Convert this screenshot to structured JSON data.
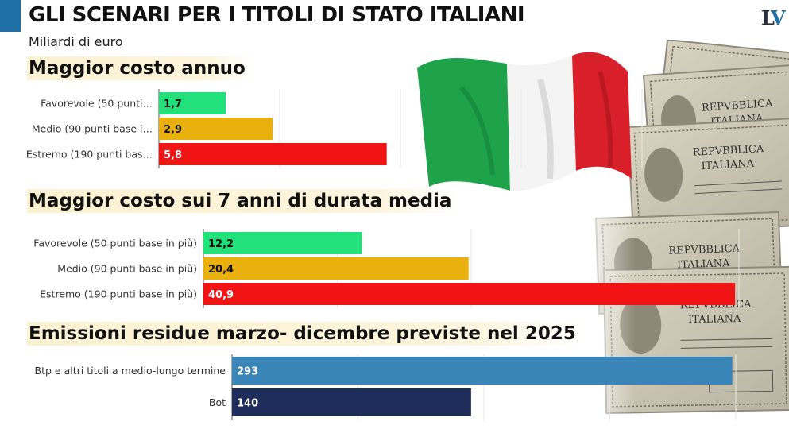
{
  "header": {
    "title": "GLI SCENARI PER I TITOLI DI STATO ITALIANI",
    "subtitle": "Miliardi di euro",
    "logo_l": "L",
    "logo_v": "V"
  },
  "colors": {
    "favorevole": "#22e07a",
    "medio": "#eab00e",
    "estremo": "#f01414",
    "btp": "#3a85b7",
    "bot": "#1e2d5a",
    "accent": "#1d6fa5"
  },
  "decorations": {
    "bond_text_1": "REPVBBLICA",
    "bond_text_2": "ITALIANA"
  },
  "chart_data": [
    {
      "type": "bar",
      "orientation": "horizontal",
      "title": "Maggior costo annuo",
      "categories": [
        "Favorevole (50 punti base in più)",
        "Medio (90 punti base in più)",
        "Estremo (190 punti base in più)"
      ],
      "display_categories": [
        "Favorevole (50 punti…",
        "Medio (90 punti base i…",
        "Estremo (190 punti bas…"
      ],
      "values": [
        1.7,
        2.9,
        5.8
      ],
      "value_labels": [
        "1,7",
        "2,9",
        "5,8"
      ],
      "xlim": [
        0,
        12.3
      ],
      "grid": true
    },
    {
      "type": "bar",
      "orientation": "horizontal",
      "title": "Maggior costo sui 7 anni di durata media",
      "categories": [
        "Favorevole (50 punti base in più)",
        "Medio (90 punti base in più)",
        "Estremo (190 punti base in più)"
      ],
      "display_categories": [
        "Favorevole (50 punti base in più)",
        "Medio (90 punti base in più)",
        "Estremo (190 punti base in più)"
      ],
      "values": [
        12.2,
        20.4,
        40.9
      ],
      "value_labels": [
        "12,2",
        "20,4",
        "40,9"
      ],
      "xlim": [
        0,
        41.2
      ],
      "grid": true
    },
    {
      "type": "bar",
      "orientation": "horizontal",
      "title": "Emissioni residue marzo- dicembre previste nel 2025",
      "categories": [
        "Btp e altri titoli a medio-lungo termine",
        "Bot"
      ],
      "display_categories": [
        "Btp e altri titoli a medio-lungo termine",
        "Bot"
      ],
      "values": [
        293,
        140
      ],
      "value_labels": [
        "293",
        "140"
      ],
      "xlim": [
        0,
        295
      ],
      "grid": true
    }
  ]
}
